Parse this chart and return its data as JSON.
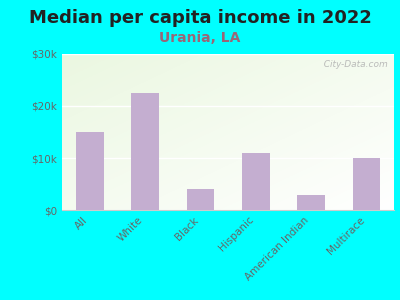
{
  "title": "Median per capita income in 2022",
  "subtitle": "Urania, LA",
  "categories": [
    "All",
    "White",
    "Black",
    "Hispanic",
    "American Indian",
    "Multirace"
  ],
  "values": [
    15000,
    22500,
    4000,
    11000,
    2800,
    10000
  ],
  "bar_color": "#c4aed0",
  "background_outer": "#00FFFF",
  "ylim": [
    0,
    30000
  ],
  "yticks": [
    0,
    10000,
    20000,
    30000
  ],
  "ytick_labels": [
    "$0",
    "$10k",
    "$20k",
    "$30k"
  ],
  "title_fontsize": 13,
  "subtitle_fontsize": 10,
  "tick_fontsize": 7.5,
  "tick_color": "#666666",
  "title_color": "#222222",
  "subtitle_color": "#996677",
  "watermark": "  City-Data.com",
  "watermark_icon": "@"
}
